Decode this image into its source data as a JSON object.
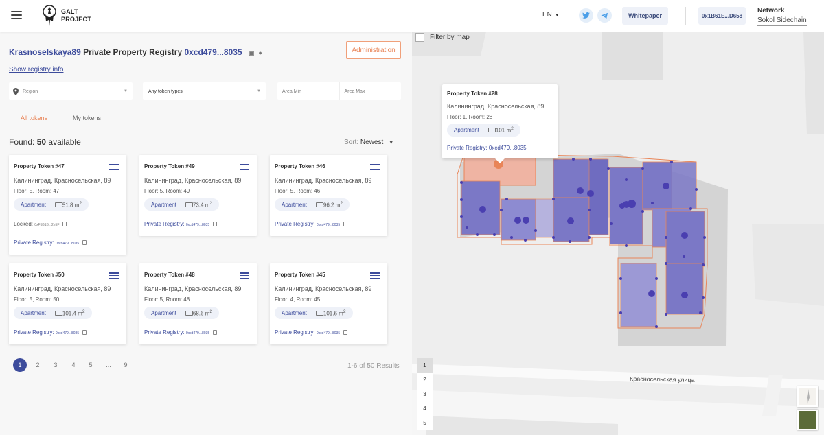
{
  "header": {
    "logo_line1": "GALT",
    "logo_line2": "PROJECT",
    "lang": "EN",
    "whitepaper": "Whitepaper",
    "wallet": "0x1B61E...D658",
    "network_label": "Network",
    "network_value": "Sokol Sidechain"
  },
  "registry": {
    "title_link": "Krasnoselskaya89",
    "title_text": " Private Property Registry ",
    "address": "0xcd479...8035",
    "show_info": "Show registry info",
    "admin_button": "Administration"
  },
  "filters": {
    "region": "Region",
    "token_types": "Any token types",
    "area_min": "Area Min",
    "area_max": "Area Max"
  },
  "tabs": {
    "all": "All tokens",
    "mine": "My tokens"
  },
  "found": {
    "prefix": "Found: ",
    "count": "50",
    "suffix": " available"
  },
  "sort": {
    "label": "Sort: ",
    "value": "Newest"
  },
  "cards": [
    {
      "title": "Property Token #47",
      "address": "Калининград, Красносельская, 89",
      "floor": "Floor: 5, Room: 47",
      "type": "Apartment",
      "area": "51.8 m",
      "locked_label": "Locked: ",
      "locked_value": "0xF5B1B...2e5F",
      "registry_label": "Private Registry: ",
      "registry_value": "0xcd479...8035"
    },
    {
      "title": "Property Token #49",
      "address": "Калининград, Красносельская, 89",
      "floor": "Floor: 5, Room: 49",
      "type": "Apartment",
      "area": "73.4 m",
      "registry_label": "Private Registry: ",
      "registry_value": "0xcd479...8035"
    },
    {
      "title": "Property Token #46",
      "address": "Калининград, Красносельская, 89",
      "floor": "Floor: 5, Room: 46",
      "type": "Apartment",
      "area": "96.2 m",
      "registry_label": "Private Registry: ",
      "registry_value": "0xcd479...8035"
    },
    {
      "title": "Property Token #50",
      "address": "Калининград, Красносельская, 89",
      "floor": "Floor: 5, Room: 50",
      "type": "Apartment",
      "area": "101.4 m",
      "registry_label": "Private Registry: ",
      "registry_value": "0xcd479...8035"
    },
    {
      "title": "Property Token #48",
      "address": "Калининград, Красносельская, 89",
      "floor": "Floor: 5, Room: 48",
      "type": "Apartment",
      "area": "68.6 m",
      "registry_label": "Private Registry: ",
      "registry_value": "0xcd479...8035"
    },
    {
      "title": "Property Token #45",
      "address": "Калининград, Красносельская, 89",
      "floor": "Floor: 4, Room: 45",
      "type": "Apartment",
      "area": "101.6 m",
      "registry_label": "Private Registry: ",
      "registry_value": "0xcd479...8035"
    }
  ],
  "area_sup": "2",
  "pagination": {
    "pages": [
      "1",
      "2",
      "3",
      "4",
      "5",
      "...",
      "9"
    ],
    "active": "1",
    "results": "1-6 of 50 Results"
  },
  "map": {
    "filter_by_map": "Filter by map",
    "street": "Красносельская улица",
    "floors": [
      "1",
      "2",
      "3",
      "4",
      "5"
    ],
    "popup": {
      "title": "Property Token #28",
      "address": "Калининград, Красносельская, 89",
      "floor": "Floor: 1, Room: 28",
      "type": "Apartment",
      "area": "101 m",
      "registry_label": "Private Registry: ",
      "registry_value": "0xcd479...8035"
    }
  },
  "colors": {
    "accent": "#3d4c9c",
    "orange": "#e98558",
    "room_fill": "#7b78c6",
    "room_dot": "#4a3fb0"
  },
  "icons": [
    "menu-icon",
    "galt-logo",
    "caret-down-icon",
    "twitter-icon",
    "telegram-icon",
    "copy-icon",
    "info-icon",
    "location-pin-icon",
    "area-icon",
    "clipboard-icon"
  ]
}
